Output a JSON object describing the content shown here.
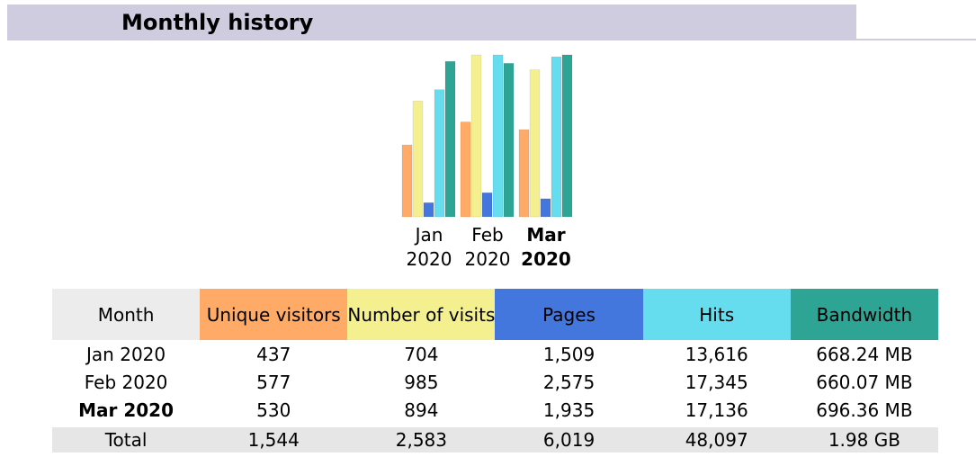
{
  "header": {
    "title": "Monthly history"
  },
  "chart_data": {
    "type": "bar",
    "categories": [
      "Jan 2020",
      "Feb 2020",
      "Mar 2020"
    ],
    "series": [
      {
        "color": "#ffaa66",
        "values": [
          437,
          577,
          530
        ]
      },
      {
        "color": "#f4f090",
        "values": [
          704,
          985,
          894
        ]
      },
      {
        "color": "#4477dd",
        "values": [
          1509,
          2575,
          1935
        ]
      },
      {
        "color": "#66ddee",
        "values": [
          13616,
          17345,
          17136
        ]
      },
      {
        "color": "#2ea495",
        "values": [
          668.24,
          660.07,
          696.36
        ]
      }
    ]
  },
  "table": {
    "columns": [
      "Month",
      "Unique visitors",
      "Number of visits",
      "Pages",
      "Hits",
      "Bandwidth"
    ],
    "column_colors": [
      "#ececec",
      "#ffaa66",
      "#f4f090",
      "#4477dd",
      "#66ddee",
      "#2ea495"
    ],
    "rows": [
      [
        "Jan 2020",
        "437",
        "704",
        "1,509",
        "13,616",
        "668.24 MB"
      ],
      [
        "Feb 2020",
        "577",
        "985",
        "2,575",
        "17,345",
        "660.07 MB"
      ],
      [
        "Mar 2020",
        "530",
        "894",
        "1,935",
        "17,136",
        "696.36 MB"
      ]
    ],
    "total": [
      "Total",
      "1,544",
      "2,583",
      "6,019",
      "48,097",
      "1.98 GB"
    ]
  }
}
